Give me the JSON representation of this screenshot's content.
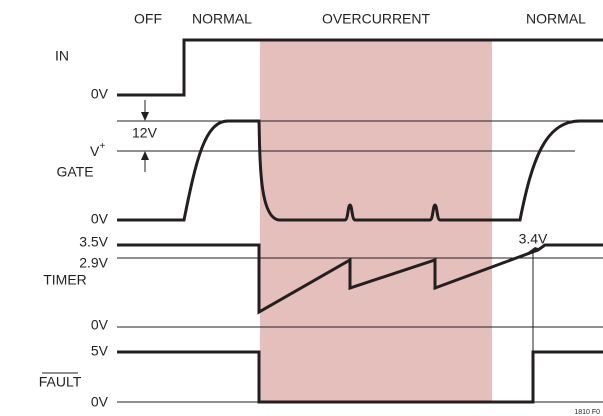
{
  "phases": [
    "OFF",
    "NORMAL",
    "OVERCURRENT",
    "NORMAL"
  ],
  "signals": [
    "IN",
    "GATE",
    "TIMER",
    "FAULT"
  ],
  "levels": {
    "in_low": "0V",
    "gate_delta": "12V",
    "gate_vplus": "V",
    "gate_vplus_sup": "+",
    "gate_low": "0V",
    "timer_high": "3.5V",
    "timer_mid": "2.9V",
    "timer_low": "0V",
    "fault_high": "5V",
    "fault_low": "0V"
  },
  "annotation": "3.4V",
  "figure_id": "1810 F0"
}
